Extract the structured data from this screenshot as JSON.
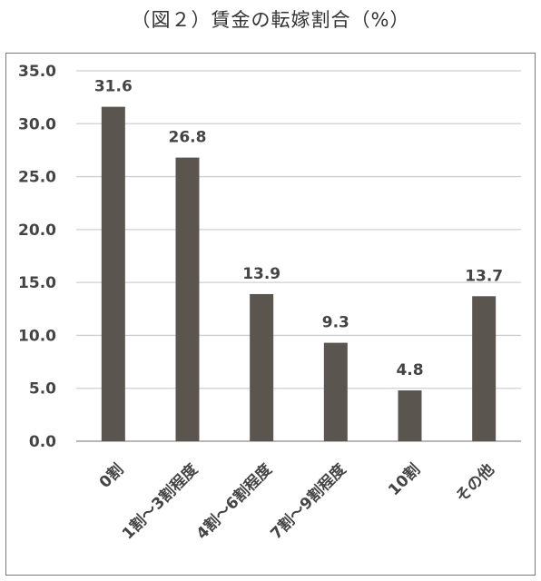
{
  "chart_data": {
    "type": "bar",
    "title": "（図２）賃金の転嫁割合（%）",
    "categories": [
      "0割",
      "1割〜3割程度",
      "4割〜6割程度",
      "7割〜9割程度",
      "10割",
      "その他"
    ],
    "values": [
      31.6,
      26.8,
      13.9,
      9.3,
      4.8,
      13.7
    ],
    "value_labels": [
      "31.6",
      "26.8",
      "13.9",
      "9.3",
      "4.8",
      "13.7"
    ],
    "yticks": [
      "0.0",
      "5.0",
      "10.0",
      "15.0",
      "20.0",
      "25.0",
      "30.0",
      "35.0"
    ],
    "ylim": [
      0,
      35
    ],
    "grid": true,
    "legend": "none",
    "xlabel": "",
    "ylabel": "",
    "colors": {
      "bar": "#5b5550",
      "grid": "#cfcfcf",
      "axis": "#a0a0a0",
      "text": "#444444"
    }
  }
}
